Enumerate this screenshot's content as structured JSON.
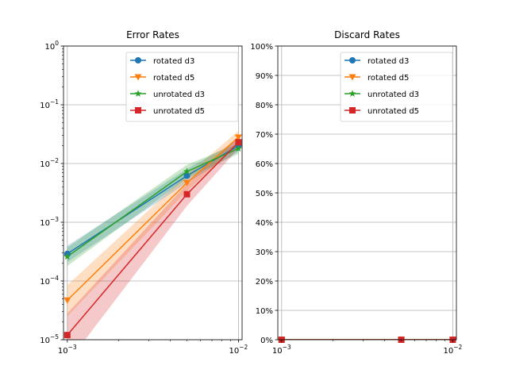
{
  "chart_data": [
    {
      "type": "line",
      "title": "Error Rates",
      "xscale": "log",
      "yscale": "log",
      "xlim": [
        0.00095,
        0.0105
      ],
      "ylim": [
        1e-05,
        1
      ],
      "grid": true,
      "legend_position": "top-right",
      "x_tick_labels": [
        "10^-3",
        "10^-2"
      ],
      "y_tick_labels": [
        "10^-5",
        "10^-4",
        "10^-3",
        "10^-2",
        "10^-1",
        "10^0"
      ],
      "series": [
        {
          "name": "rotated d3",
          "color": "#1f77b4",
          "marker": "circle",
          "x": [
            0.001,
            0.005,
            0.01
          ],
          "y": [
            0.00029,
            0.0062,
            0.02
          ],
          "lower": [
            0.00021,
            0.0047,
            0.016
          ],
          "upper": [
            0.0004,
            0.0081,
            0.025
          ]
        },
        {
          "name": "rotated d5",
          "color": "#ff7f0e",
          "marker": "triangle-down",
          "x": [
            0.001,
            0.005,
            0.01
          ],
          "y": [
            4.7e-05,
            0.0047,
            0.028
          ],
          "lower": [
            2.5e-05,
            0.0034,
            0.022
          ],
          "upper": [
            8.5e-05,
            0.0064,
            0.036
          ]
        },
        {
          "name": "unrotated d3",
          "color": "#2ca02c",
          "marker": "star",
          "x": [
            0.001,
            0.005,
            0.01
          ],
          "y": [
            0.00026,
            0.0073,
            0.018
          ],
          "lower": [
            0.00018,
            0.0056,
            0.0145
          ],
          "upper": [
            0.00037,
            0.0095,
            0.022
          ]
        },
        {
          "name": "unrotated d5",
          "color": "#d62728",
          "marker": "square",
          "x": [
            0.001,
            0.005,
            0.01
          ],
          "y": [
            1.2e-05,
            0.003,
            0.023
          ],
          "lower": [
            4e-06,
            0.0019,
            0.018
          ],
          "upper": [
            2.8e-05,
            0.0045,
            0.029
          ]
        }
      ]
    },
    {
      "type": "line",
      "title": "Discard Rates",
      "xscale": "log",
      "yscale": "linear",
      "xlim": [
        0.00095,
        0.0105
      ],
      "ylim": [
        0,
        1
      ],
      "grid": true,
      "legend_position": "top-right",
      "x_tick_labels": [
        "10^-3",
        "10^-2"
      ],
      "y_tick_labels": [
        "0%",
        "10%",
        "20%",
        "30%",
        "40%",
        "50%",
        "60%",
        "70%",
        "80%",
        "90%",
        "100%"
      ],
      "series": [
        {
          "name": "rotated d3",
          "color": "#1f77b4",
          "marker": "circle",
          "x": [
            0.001,
            0.005,
            0.01
          ],
          "y": [
            0,
            0,
            0
          ]
        },
        {
          "name": "rotated d5",
          "color": "#ff7f0e",
          "marker": "triangle-down",
          "x": [
            0.001,
            0.005,
            0.01
          ],
          "y": [
            0,
            0,
            0
          ]
        },
        {
          "name": "unrotated d3",
          "color": "#2ca02c",
          "marker": "star",
          "x": [
            0.001,
            0.005,
            0.01
          ],
          "y": [
            0,
            0,
            0
          ]
        },
        {
          "name": "unrotated d5",
          "color": "#d62728",
          "marker": "square",
          "x": [
            0.001,
            0.005,
            0.01
          ],
          "y": [
            0,
            0,
            0
          ]
        }
      ]
    }
  ]
}
